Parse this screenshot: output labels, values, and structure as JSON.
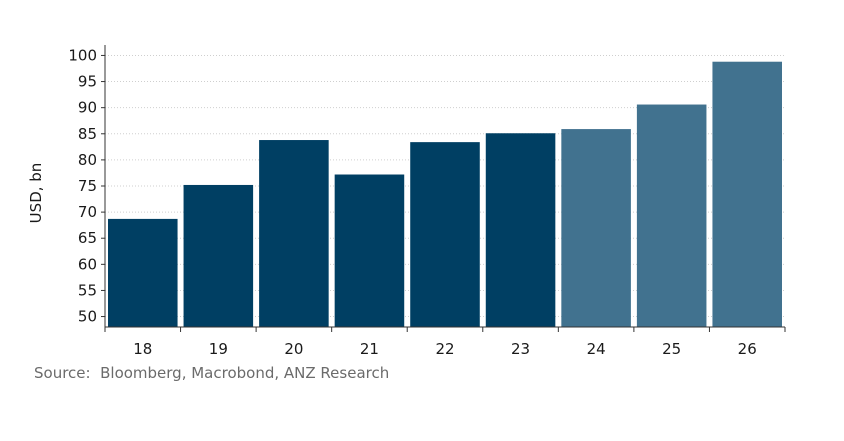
{
  "chart_data": {
    "type": "bar",
    "categories": [
      "18",
      "19",
      "20",
      "21",
      "22",
      "23",
      "24",
      "25",
      "26"
    ],
    "values": [
      68.7,
      75.2,
      83.8,
      77.2,
      83.4,
      85.1,
      85.9,
      90.6,
      98.8
    ],
    "kind": [
      "actual",
      "actual",
      "actual",
      "actual",
      "actual",
      "actual",
      "forecast",
      "forecast",
      "forecast"
    ],
    "ylabel": "USD, bn",
    "ylim": [
      48,
      102
    ],
    "yticks": [
      50,
      55,
      60,
      65,
      70,
      75,
      80,
      85,
      90,
      95,
      100
    ],
    "grid": true,
    "colors": {
      "actual": "#003F63",
      "forecast": "#41728F",
      "grid": "#cfcfcf",
      "axis": "#333333"
    }
  },
  "source": "Source:  Bloomberg, Macrobond, ANZ Research"
}
